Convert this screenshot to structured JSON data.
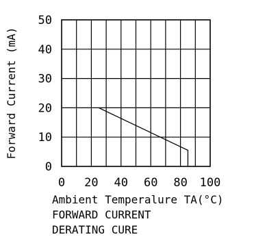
{
  "chart_data": {
    "type": "line",
    "title": "",
    "xlabel": "Ambient Temperalure TA(°C)",
    "ylabel": "Forward Current (mA)",
    "caption_lines": [
      "FORWARD CURRENT",
      "DERATING CURE"
    ],
    "xlim": [
      0,
      100
    ],
    "ylim": [
      0,
      50
    ],
    "x_ticks": [
      0,
      20,
      40,
      60,
      80,
      100
    ],
    "y_ticks": [
      0,
      10,
      20,
      30,
      40,
      50
    ],
    "x_grid_step": 10,
    "y_grid_step": 10,
    "grid": true,
    "series": [
      {
        "x": [
          25,
          85,
          85
        ],
        "y": [
          20,
          5.5,
          0
        ]
      }
    ]
  }
}
